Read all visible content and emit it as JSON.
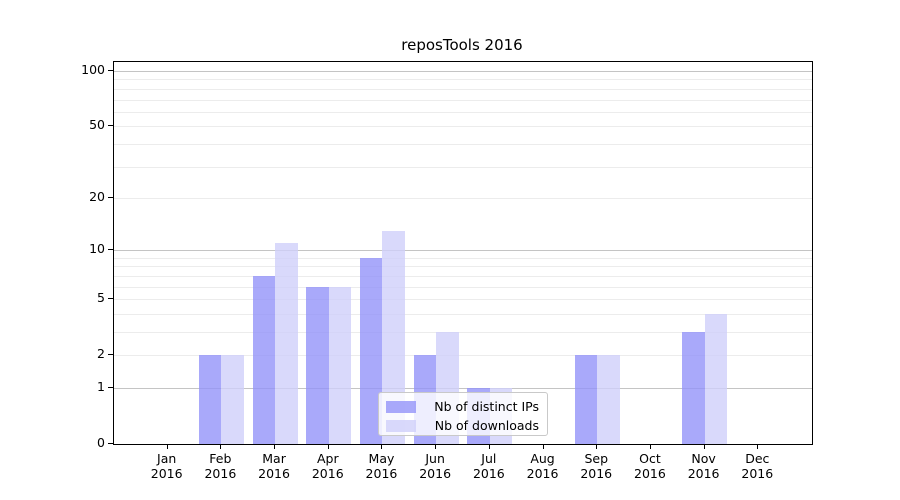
{
  "chart_data": {
    "type": "bar",
    "title": "reposTools 2016",
    "categories": [
      "Jan",
      "Feb",
      "Mar",
      "Apr",
      "May",
      "Jun",
      "Jul",
      "Aug",
      "Sep",
      "Oct",
      "Nov",
      "Dec"
    ],
    "category_year": "2016",
    "series": [
      {
        "name": "Nb of distinct IPs",
        "color": "#9393f9",
        "alpha": 0.8,
        "values": [
          0,
          2,
          7,
          6,
          9,
          2,
          1,
          0,
          2,
          0,
          3,
          0
        ]
      },
      {
        "name": "Nb of downloads",
        "color": "#cfcffa",
        "alpha": 0.8,
        "values": [
          0,
          2,
          11,
          6,
          13,
          3,
          1,
          0,
          2,
          0,
          4,
          0
        ]
      }
    ],
    "yaxis": {
      "scale": "log1p",
      "ylim": [
        0,
        112
      ],
      "tick_values": [
        0,
        1,
        2,
        5,
        10,
        20,
        50,
        100
      ],
      "tick_labels": [
        "0",
        "1",
        "2",
        "5",
        "10",
        "20",
        "50",
        "100"
      ],
      "major_grid_values": [
        1,
        10,
        100
      ],
      "minor_grid_values": [
        2,
        3,
        4,
        5,
        6,
        7,
        8,
        9,
        20,
        30,
        40,
        50,
        60,
        70,
        80,
        90
      ]
    },
    "grid": true,
    "legend_position": "lower center"
  },
  "colors": {
    "bar_distinct_ips": "#9393f9",
    "bar_downloads": "#cfcffa",
    "major_grid": "#c4c4c4",
    "minor_grid": "#ececec",
    "axis_spine": "#000000",
    "legend_border": "#c9c9c9"
  }
}
